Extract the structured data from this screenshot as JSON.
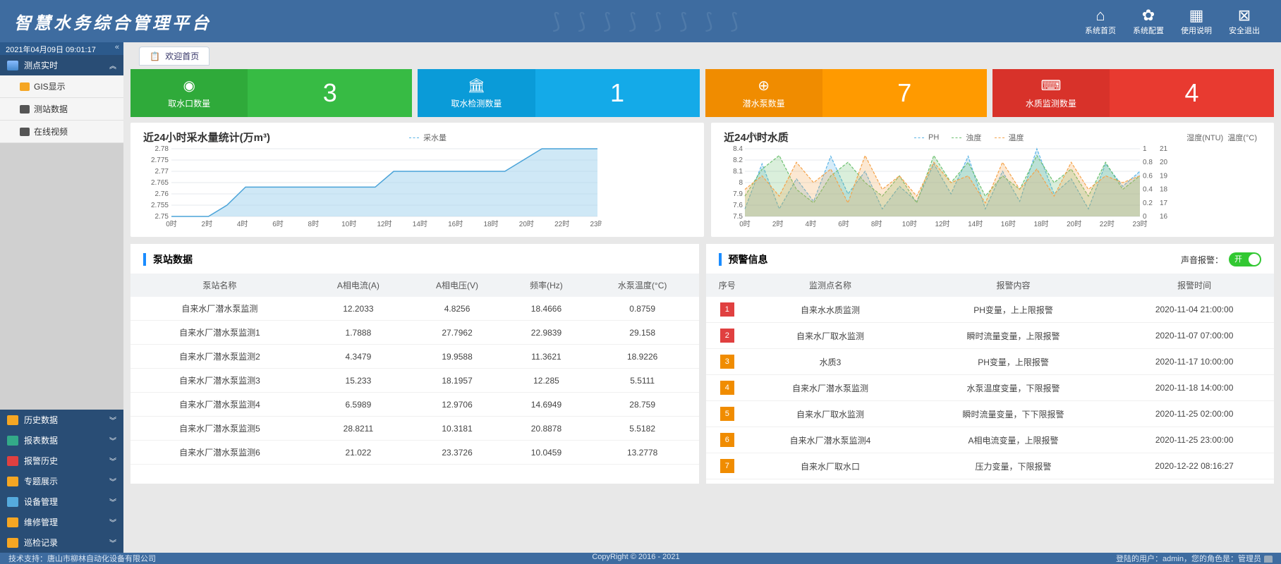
{
  "header": {
    "title": "智慧水务综合管理平台",
    "nav": [
      {
        "label": "系统首页",
        "icon": "⌂"
      },
      {
        "label": "系统配置",
        "icon": "✿"
      },
      {
        "label": "使用说明",
        "icon": "▦"
      },
      {
        "label": "安全退出",
        "icon": "⊠"
      }
    ]
  },
  "sidebar": {
    "clock": "2021年04月09日 09:01:17",
    "active_group": "测点实时",
    "subs": [
      {
        "label": "GIS显示",
        "icon_color": "#f5a623"
      },
      {
        "label": "测站数据",
        "icon_color": "#555"
      },
      {
        "label": "在线视频",
        "icon_color": "#555"
      }
    ],
    "groups": [
      {
        "label": "历史数据",
        "icon_color": "#f5a623"
      },
      {
        "label": "报表数据",
        "icon_color": "#3a8"
      },
      {
        "label": "报警历史",
        "icon_color": "#e04040"
      },
      {
        "label": "专题展示",
        "icon_color": "#f5a623"
      },
      {
        "label": "设备管理",
        "icon_color": "#5ad"
      },
      {
        "label": "维修管理",
        "icon_color": "#f5a623"
      },
      {
        "label": "巡检记录",
        "icon_color": "#f5a623"
      }
    ]
  },
  "tab": {
    "label": "欢迎首页"
  },
  "cards": [
    {
      "label": "取水口数量",
      "value": "3",
      "left": "#2faa3a",
      "right": "#37bb44",
      "icon": "◉"
    },
    {
      "label": "取水检测数量",
      "value": "1",
      "left": "#0a9bd8",
      "right": "#14aae8",
      "icon": "🏛"
    },
    {
      "label": "潜水泵数量",
      "value": "7",
      "left": "#f08c00",
      "right": "#ff9a00",
      "icon": "⊕"
    },
    {
      "label": "水质监测数量",
      "value": "4",
      "left": "#d8322a",
      "right": "#e83a30",
      "icon": "⌨"
    }
  ],
  "chart1": {
    "title": "近24小时采水量统计(万m³)",
    "legend": "采水量",
    "legend_color": "#59b4e6",
    "yticks": [
      "2.78",
      "2.775",
      "2.77",
      "2.765",
      "2.76",
      "2.755",
      "2.75"
    ],
    "xticks": [
      "0时",
      "2时",
      "4时",
      "6时",
      "8时",
      "10时",
      "12时",
      "14时",
      "16时",
      "18时",
      "20时",
      "22时",
      "23时"
    ],
    "grid_color": "#e4e8ec",
    "line_color": "#4aa3d8",
    "fill_color": "#a8d5ee",
    "values": [
      2.75,
      2.75,
      2.75,
      2.755,
      2.763,
      2.763,
      2.763,
      2.763,
      2.763,
      2.763,
      2.763,
      2.763,
      2.77,
      2.77,
      2.77,
      2.77,
      2.77,
      2.77,
      2.77,
      2.775,
      2.78,
      2.78,
      2.78,
      2.78
    ]
  },
  "chart2": {
    "title": "近24小时水质",
    "left_label": "PH",
    "right_label1": "湿度(NTU)",
    "right_label2": "温度(°C)",
    "legends": [
      {
        "name": "PH",
        "color": "#5ab4e6"
      },
      {
        "name": "浊度",
        "color": "#6cc070"
      },
      {
        "name": "温度",
        "color": "#f5a34a"
      }
    ],
    "yleft": [
      "8.4",
      "8.2",
      "8.1",
      "8",
      "7.9",
      "7.6",
      "7.5"
    ],
    "yr1": [
      "1",
      "0.8",
      "0.6",
      "0.4",
      "0.2",
      "0"
    ],
    "yr2": [
      "21",
      "20",
      "19",
      "18",
      "17",
      "16"
    ],
    "xticks": [
      "0时",
      "2时",
      "4时",
      "6时",
      "8时",
      "10时",
      "12时",
      "14时",
      "16时",
      "18时",
      "20时",
      "22时",
      "23时"
    ],
    "grid_color": "#e4e8ec",
    "series": {
      "ph": [
        7.6,
        8.2,
        7.6,
        8.0,
        7.7,
        8.3,
        7.8,
        8.1,
        7.6,
        7.9,
        7.7,
        8.2,
        7.8,
        8.3,
        7.6,
        8.1,
        7.7,
        8.4,
        7.8,
        8.0,
        7.6,
        8.2,
        7.9,
        8.1
      ],
      "turb": [
        0.3,
        0.7,
        0.9,
        0.4,
        0.2,
        0.6,
        0.8,
        0.5,
        0.3,
        0.6,
        0.2,
        0.9,
        0.5,
        0.8,
        0.3,
        0.6,
        0.4,
        0.9,
        0.5,
        0.7,
        0.3,
        0.8,
        0.4,
        0.6
      ],
      "temp": [
        18,
        19,
        17.5,
        20,
        18.5,
        19.5,
        17,
        20.5,
        18,
        19,
        17.5,
        20,
        18.5,
        19,
        17,
        20,
        18,
        19.5,
        17.5,
        20,
        18,
        19,
        18.5,
        19
      ]
    }
  },
  "pumps": {
    "title": "泵站数据",
    "cols": [
      "泵站名称",
      "A相电流(A)",
      "A相电压(V)",
      "频率(Hz)",
      "水泵温度(°C)"
    ],
    "rows": [
      [
        "自来水厂潜水泵监测",
        "12.2033",
        "4.8256",
        "18.4666",
        "0.8759"
      ],
      [
        "自来水厂潜水泵监测1",
        "1.7888",
        "27.7962",
        "22.9839",
        "29.158"
      ],
      [
        "自来水厂潜水泵监测2",
        "4.3479",
        "19.9588",
        "11.3621",
        "18.9226"
      ],
      [
        "自来水厂潜水泵监测3",
        "15.233",
        "18.1957",
        "12.285",
        "5.5111"
      ],
      [
        "自来水厂潜水泵监测4",
        "6.5989",
        "12.9706",
        "14.6949",
        "28.759"
      ],
      [
        "自来水厂潜水泵监测5",
        "28.8211",
        "10.3181",
        "20.8878",
        "5.5182"
      ],
      [
        "自来水厂潜水泵监测6",
        "21.022",
        "23.3726",
        "10.0459",
        "13.2778"
      ]
    ]
  },
  "alerts": {
    "title": "预警信息",
    "sound_label": "声音报警：",
    "toggle_text": "开",
    "cols": [
      "序号",
      "监测点名称",
      "报警内容",
      "报警时间"
    ],
    "badge_colors": [
      "#e04040",
      "#e04040",
      "#f08c00",
      "#f08c00",
      "#f08c00",
      "#f08c00",
      "#f08c00"
    ],
    "rows": [
      [
        "1",
        "自来水水质监测",
        "PH变量，上上限报警",
        "2020-11-04 21:00:00"
      ],
      [
        "2",
        "自来水厂取水监测",
        "瞬时流量变量，上限报警",
        "2020-11-07 07:00:00"
      ],
      [
        "3",
        "水质3",
        "PH变量，上限报警",
        "2020-11-17 10:00:00"
      ],
      [
        "4",
        "自来水厂潜水泵监测",
        "水泵温度变量，下限报警",
        "2020-11-18 14:00:00"
      ],
      [
        "5",
        "自来水厂取水监测",
        "瞬时流量变量，下下限报警",
        "2020-11-25 02:00:00"
      ],
      [
        "6",
        "自来水厂潜水泵监测4",
        "A相电流变量，上限报警",
        "2020-11-25 23:00:00"
      ],
      [
        "7",
        "自来水厂取水口",
        "压力变量，下限报警",
        "2020-12-22 08:16:27"
      ]
    ]
  },
  "footer": {
    "left": "技术支持：唐山市柳林自动化设备有限公司",
    "mid": "CopyRight © 2016 - 2021",
    "right": "登陆的用户：admin，您的角色是：管理员"
  }
}
